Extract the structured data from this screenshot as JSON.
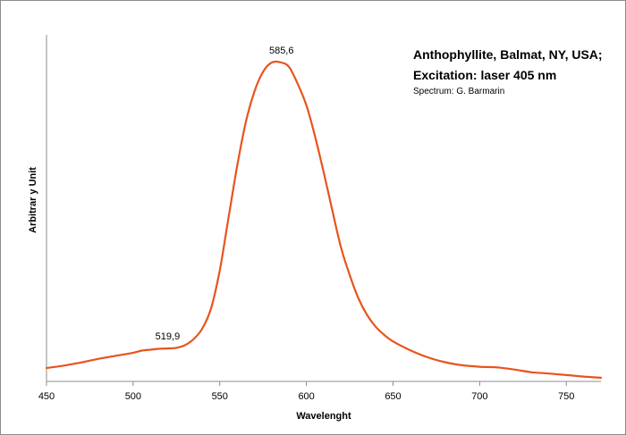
{
  "chart_data": {
    "type": "line",
    "title_lines": [
      "Anthophyllite, Balmat, NY, USA;",
      "Excitation:  laser 405 nm"
    ],
    "subtitle": "Spectrum: G. Barmarin",
    "xlabel": "Wavelenght",
    "ylabel": "Arbitrar y Unit",
    "xlim": [
      450,
      770
    ],
    "ylim": [
      0,
      1
    ],
    "x_ticks": [
      450,
      500,
      550,
      600,
      650,
      700,
      750
    ],
    "y_ticks_shown": false,
    "grid": false,
    "legend": "none",
    "series": [
      {
        "color": "#e8541d",
        "x": [
          450,
          460,
          470,
          480,
          490,
          500,
          505,
          510,
          515,
          519.9,
          525,
          530,
          535,
          540,
          545,
          550,
          555,
          560,
          565,
          570,
          575,
          580,
          585.6,
          590,
          595,
          600,
          605,
          610,
          615,
          620,
          625,
          630,
          635,
          640,
          645,
          650,
          660,
          670,
          680,
          690,
          700,
          710,
          720,
          730,
          740,
          750,
          760,
          770
        ],
        "y": [
          0.0,
          0.008,
          0.018,
          0.03,
          0.04,
          0.05,
          0.057,
          0.06,
          0.063,
          0.064,
          0.066,
          0.075,
          0.095,
          0.13,
          0.196,
          0.32,
          0.49,
          0.66,
          0.804,
          0.905,
          0.97,
          1.0,
          1.0,
          0.985,
          0.93,
          0.86,
          0.758,
          0.64,
          0.515,
          0.394,
          0.304,
          0.228,
          0.174,
          0.135,
          0.108,
          0.087,
          0.058,
          0.035,
          0.019,
          0.009,
          0.004,
          0.002,
          -0.005,
          -0.014,
          -0.018,
          -0.023,
          -0.028,
          -0.032
        ]
      }
    ],
    "peak_labels": [
      {
        "x": 519.9,
        "y": 0.064,
        "text": "519,9"
      },
      {
        "x": 585.6,
        "y": 1.0,
        "text": "585,6"
      }
    ]
  }
}
